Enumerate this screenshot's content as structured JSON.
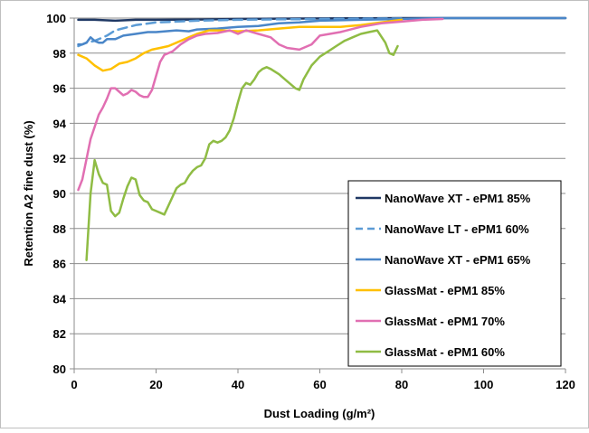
{
  "chart_data": {
    "type": "line",
    "title": "",
    "xlabel": "Dust Loading (g/m²)",
    "ylabel": "Retention A2 fine dust (%)",
    "xlim": [
      0,
      120
    ],
    "ylim": [
      80,
      100
    ],
    "x_ticks": [
      "0",
      "20",
      "40",
      "60",
      "80",
      "100",
      "120"
    ],
    "y_ticks": [
      "80",
      "82",
      "84",
      "86",
      "88",
      "90",
      "92",
      "94",
      "96",
      "98",
      "100"
    ],
    "grid": "horizontal",
    "legend_position": "bottom-right",
    "series": [
      {
        "name": "NanoWave XT - ePM1 85%",
        "color": "#1f3864",
        "dash": "solid",
        "x": [
          1,
          5,
          10,
          15,
          20,
          30,
          40,
          50,
          60,
          70,
          80,
          90,
          100,
          110,
          120
        ],
        "y": [
          99.9,
          99.9,
          99.85,
          99.9,
          99.9,
          99.92,
          99.95,
          99.97,
          99.98,
          99.99,
          100,
          100,
          100,
          100,
          100
        ]
      },
      {
        "name": "NanoWave LT - ePM1 60%",
        "color": "#5b9bd5",
        "dash": "dashed",
        "x": [
          1,
          3,
          5,
          8,
          10,
          15,
          20,
          25,
          30,
          40,
          50,
          60,
          70,
          80
        ],
        "y": [
          98.4,
          98.6,
          98.7,
          99.0,
          99.3,
          99.6,
          99.75,
          99.8,
          99.85,
          99.9,
          99.93,
          99.95,
          99.97,
          99.98
        ]
      },
      {
        "name": "NanoWave XT - ePM1 65%",
        "color": "#4a86c8",
        "dash": "solid",
        "x": [
          1,
          2,
          3,
          4,
          5,
          6,
          7,
          8,
          10,
          12,
          15,
          18,
          20,
          25,
          28,
          30,
          35,
          40,
          45,
          50,
          55,
          60,
          70,
          80,
          90,
          100,
          110,
          120
        ],
        "y": [
          98.5,
          98.5,
          98.6,
          98.9,
          98.7,
          98.6,
          98.6,
          98.8,
          98.8,
          99.0,
          99.1,
          99.2,
          99.2,
          99.3,
          99.25,
          99.35,
          99.4,
          99.5,
          99.55,
          99.7,
          99.75,
          99.85,
          99.9,
          99.95,
          100,
          100,
          100,
          100
        ]
      },
      {
        "name": "GlassMat - ePM1 85%",
        "color": "#ffc000",
        "dash": "solid",
        "x": [
          1,
          3,
          5,
          7,
          9,
          11,
          13,
          15,
          17,
          19,
          21,
          23,
          25,
          28,
          30,
          33,
          36,
          40,
          45,
          50,
          55,
          60,
          65,
          70,
          75,
          80
        ],
        "y": [
          97.9,
          97.7,
          97.3,
          97.0,
          97.1,
          97.4,
          97.5,
          97.7,
          98.0,
          98.2,
          98.3,
          98.4,
          98.6,
          98.9,
          99.1,
          99.3,
          99.3,
          99.25,
          99.3,
          99.4,
          99.5,
          99.5,
          99.5,
          99.6,
          99.75,
          99.9
        ]
      },
      {
        "name": "GlassMat - ePM1 70%",
        "color": "#e16fb2",
        "dash": "solid",
        "x": [
          1,
          2,
          4,
          6,
          7,
          8,
          9,
          10,
          11,
          12,
          13,
          14,
          15,
          16,
          17,
          18,
          19,
          20,
          21,
          22,
          24,
          26,
          28,
          30,
          32,
          35,
          38,
          40,
          42,
          45,
          48,
          50,
          52,
          55,
          58,
          60,
          65,
          70,
          75,
          80,
          85,
          90
        ],
        "y": [
          90.2,
          90.8,
          93.1,
          94.5,
          94.9,
          95.4,
          96.0,
          96.0,
          95.8,
          95.6,
          95.7,
          95.9,
          95.8,
          95.6,
          95.5,
          95.5,
          95.9,
          96.7,
          97.5,
          97.9,
          98.1,
          98.5,
          98.8,
          99.0,
          99.1,
          99.15,
          99.3,
          99.1,
          99.3,
          99.1,
          98.9,
          98.5,
          98.3,
          98.2,
          98.5,
          99.0,
          99.2,
          99.5,
          99.7,
          99.8,
          99.9,
          99.95
        ]
      },
      {
        "name": "GlassMat - ePM1 60%",
        "color": "#8fbc44",
        "dash": "solid",
        "x": [
          3,
          4,
          5,
          6,
          7,
          8,
          9,
          10,
          11,
          12,
          13,
          14,
          15,
          16,
          17,
          18,
          19,
          20,
          21,
          22,
          23,
          24,
          25,
          26,
          27,
          28,
          29,
          30,
          31,
          32,
          33,
          34,
          35,
          36,
          37,
          38,
          39,
          40,
          41,
          42,
          43,
          44,
          45,
          46,
          47,
          48,
          50,
          52,
          54,
          55,
          56,
          58,
          60,
          62,
          64,
          66,
          68,
          70,
          72,
          74,
          76,
          77,
          78,
          79
        ],
        "y": [
          86.2,
          90.0,
          91.9,
          91.1,
          90.6,
          90.5,
          89.0,
          88.7,
          88.9,
          89.7,
          90.4,
          90.9,
          90.8,
          89.9,
          89.6,
          89.5,
          89.1,
          89.0,
          88.9,
          88.8,
          89.3,
          89.8,
          90.3,
          90.5,
          90.6,
          91.0,
          91.3,
          91.5,
          91.6,
          92.0,
          92.8,
          93.0,
          92.9,
          93.0,
          93.2,
          93.6,
          94.3,
          95.2,
          96.0,
          96.3,
          96.2,
          96.5,
          96.9,
          97.1,
          97.2,
          97.1,
          96.8,
          96.4,
          96.0,
          95.9,
          96.5,
          97.3,
          97.8,
          98.1,
          98.4,
          98.7,
          98.9,
          99.1,
          99.2,
          99.3,
          98.6,
          98.0,
          97.9,
          98.4
        ]
      }
    ]
  }
}
